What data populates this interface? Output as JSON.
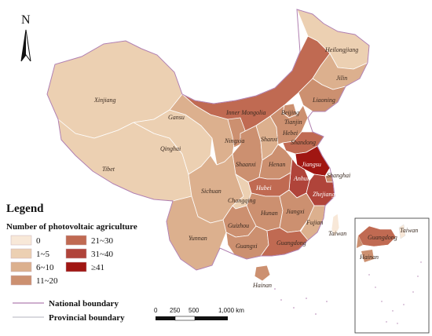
{
  "north_label": "N",
  "legend": {
    "title": "Legend",
    "subtitle": "Number of photovoltaic agriculture",
    "classes": [
      {
        "label": "0",
        "color": "#f8e8d8"
      },
      {
        "label": "1~5",
        "color": "#ecd0b2"
      },
      {
        "label": "6~10",
        "color": "#dcb08e"
      },
      {
        "label": "11~20",
        "color": "#cc9070"
      },
      {
        "label": "21~30",
        "color": "#c06a52"
      },
      {
        "label": "31~40",
        "color": "#b0443a"
      },
      {
        "label": "≥41",
        "color": "#a01612"
      }
    ],
    "lines": [
      {
        "label": "National boundary",
        "color": "#b07fb0"
      },
      {
        "label": "Provincial boundary",
        "color": "#9a9aa8"
      }
    ]
  },
  "scale_bar": {
    "ticks": [
      "0",
      "250",
      "500",
      "1,000 km"
    ]
  },
  "regions": [
    {
      "name": "Heilongjiang",
      "class": 1
    },
    {
      "name": "Jilin",
      "class": 2
    },
    {
      "name": "Liaoning",
      "class": 3
    },
    {
      "name": "Inner Mongolia",
      "class": 4
    },
    {
      "name": "Beijing",
      "class": 3
    },
    {
      "name": "Tianjin",
      "class": 2
    },
    {
      "name": "Hebei",
      "class": 3
    },
    {
      "name": "Shanxi",
      "class": 2
    },
    {
      "name": "Shandong",
      "class": 4
    },
    {
      "name": "Xinjiang",
      "class": 1
    },
    {
      "name": "Gansu",
      "class": 2
    },
    {
      "name": "Ningxia",
      "class": 3
    },
    {
      "name": "Qinghai",
      "class": 1
    },
    {
      "name": "Tibet",
      "class": 1
    },
    {
      "name": "Shaanxi",
      "class": 3
    },
    {
      "name": "Henan",
      "class": 3
    },
    {
      "name": "Jiangsu",
      "class": 6
    },
    {
      "name": "Shanghai",
      "class": 3
    },
    {
      "name": "Anhui",
      "class": 5
    },
    {
      "name": "Hubei",
      "class": 4
    },
    {
      "name": "Zhejiang",
      "class": 5
    },
    {
      "name": "Sichuan",
      "class": 2
    },
    {
      "name": "Chongqing",
      "class": 1
    },
    {
      "name": "Hunan",
      "class": 3
    },
    {
      "name": "Jiangxi",
      "class": 3
    },
    {
      "name": "Fujian",
      "class": 2
    },
    {
      "name": "Guizhou",
      "class": 3
    },
    {
      "name": "Yunnan",
      "class": 2
    },
    {
      "name": "Guangxi",
      "class": 3
    },
    {
      "name": "Guangdong",
      "class": 4
    },
    {
      "name": "Taiwan",
      "class": 0
    },
    {
      "name": "Hainan",
      "class": 3
    }
  ],
  "inset": {
    "labels": [
      "Taiwan",
      "Guangdong",
      "Hainan"
    ]
  }
}
